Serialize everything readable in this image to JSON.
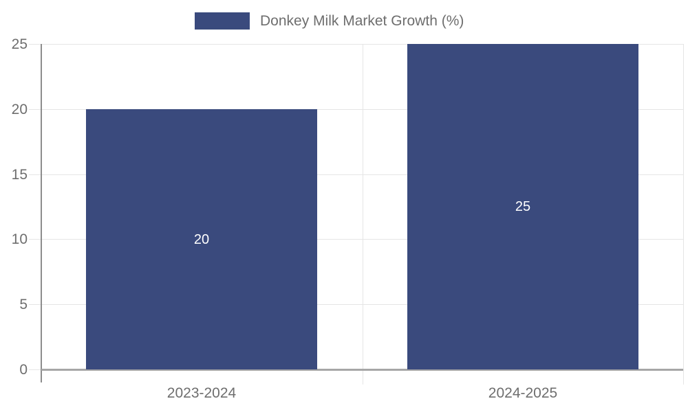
{
  "chart_data": {
    "type": "bar",
    "title": "",
    "xlabel": "",
    "ylabel": "",
    "categories": [
      "2023-2024",
      "2024-2025"
    ],
    "series": [
      {
        "name": "Donkey Milk Market Growth (%)",
        "values": [
          20,
          25
        ]
      }
    ],
    "value_labels": [
      "20",
      "25"
    ],
    "ylim": [
      0,
      25
    ],
    "yticks": [
      0,
      5,
      10,
      15,
      20,
      25
    ],
    "ytick_labels": [
      "0",
      "5",
      "10",
      "15",
      "20",
      "25"
    ],
    "grid": true,
    "legend_position": "top-center",
    "colors": {
      "bar": "#3a4a7d",
      "value_label": "#ffffff",
      "axis_text": "#6e6e6e",
      "gridline": "#e5e5e5",
      "y_axis_line": "#8c8c8c",
      "x_axis_line": "#a6a6a6",
      "background": "#ffffff"
    }
  }
}
